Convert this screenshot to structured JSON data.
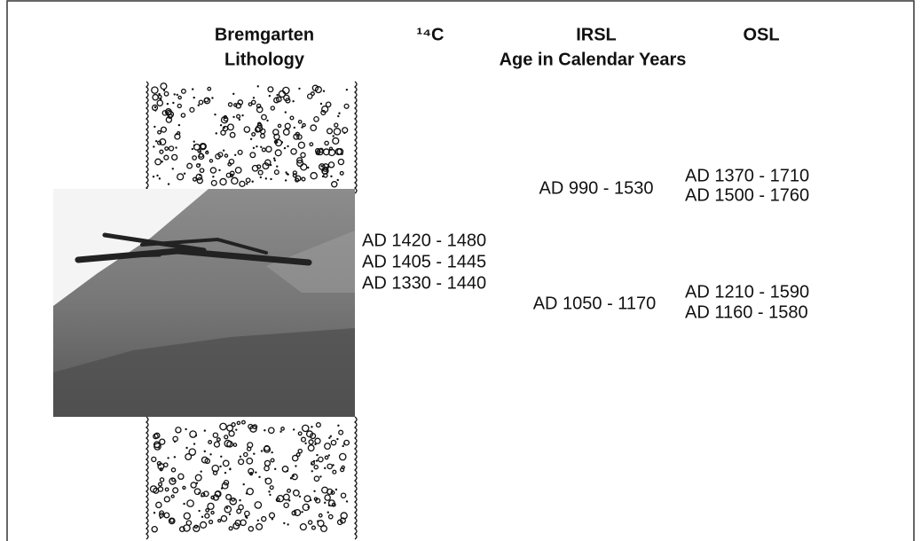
{
  "headers": {
    "lithology": [
      "Bremgarten",
      "Lithology"
    ],
    "c14": "¹⁴C",
    "irsl": "IRSL",
    "osl": "OSL",
    "age": "Age in Calendar Years"
  },
  "c14_dates": [
    "AD 1420 - 1480",
    "AD 1405 - 1445",
    "AD 1330 - 1440"
  ],
  "irsl_dates": [
    "AD 990 - 1530",
    "AD 1050 - 1170"
  ],
  "osl_dates": {
    "upper": [
      "AD 1370 - 1710",
      "AD 1500 - 1760"
    ],
    "lower": [
      "AD 1210 - 1590",
      "AD 1160 - 1580"
    ]
  }
}
